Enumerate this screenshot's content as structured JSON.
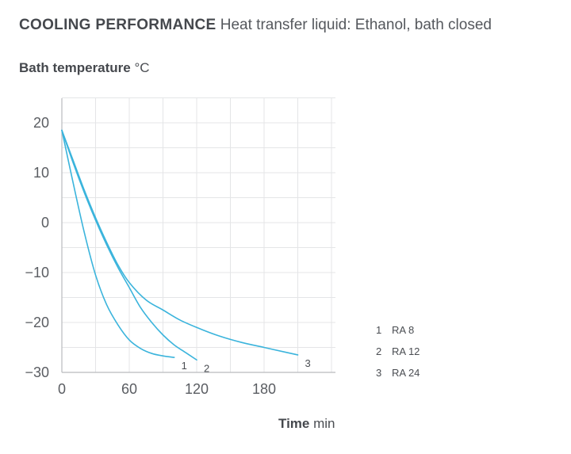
{
  "header": {
    "title": "COOLING PERFORMANCE",
    "subtitle": "Heat transfer liquid: Ethanol, bath closed"
  },
  "axes": {
    "y_label": "Bath temperature",
    "y_unit": "°C",
    "x_label": "Time",
    "x_unit": "min"
  },
  "legend": [
    {
      "num": "1",
      "label": "RA 8"
    },
    {
      "num": "2",
      "label": "RA 12"
    },
    {
      "num": "3",
      "label": "RA 24"
    }
  ],
  "chart_data": {
    "type": "line",
    "title": "COOLING PERFORMANCE Heat transfer liquid: Ethanol, bath closed",
    "xlabel": "Time min",
    "ylabel": "Bath temperature °C",
    "xlim": [
      0,
      240
    ],
    "ylim": [
      -30,
      25
    ],
    "x_ticks": [
      0,
      60,
      120,
      180
    ],
    "x_tick_labels": [
      "0",
      "60",
      "120",
      "180"
    ],
    "y_ticks": [
      20,
      10,
      0,
      -10,
      -20,
      -30
    ],
    "y_tick_labels": [
      "20",
      "10",
      "0",
      "−10",
      "−20",
      "−30"
    ],
    "grid": true,
    "line_color": "#3bb4dc",
    "series": [
      {
        "name": "RA 8",
        "end_label": "1",
        "x": [
          0,
          10,
          20,
          30,
          40,
          50,
          60,
          70,
          80,
          90,
          100
        ],
        "y": [
          18.5,
          8,
          -2,
          -10.5,
          -16.5,
          -20.5,
          -23.5,
          -25.2,
          -26.2,
          -26.7,
          -27
        ]
      },
      {
        "name": "RA 12",
        "end_label": "2",
        "x": [
          0,
          10,
          20,
          30,
          40,
          50,
          60,
          70,
          80,
          90,
          100,
          110,
          120
        ],
        "y": [
          18.5,
          12,
          6,
          0.5,
          -4.5,
          -9,
          -13,
          -17,
          -20,
          -22.5,
          -24.5,
          -26,
          -27.5
        ]
      },
      {
        "name": "RA 24",
        "end_label": "3",
        "x": [
          0,
          10,
          20,
          30,
          40,
          50,
          60,
          75,
          90,
          105,
          120,
          140,
          160,
          180,
          200,
          210
        ],
        "y": [
          18.5,
          12.5,
          6.5,
          1,
          -4,
          -8.5,
          -12,
          -15.5,
          -17.5,
          -19.5,
          -21,
          -22.7,
          -24,
          -25,
          -26,
          -26.5
        ]
      }
    ]
  }
}
